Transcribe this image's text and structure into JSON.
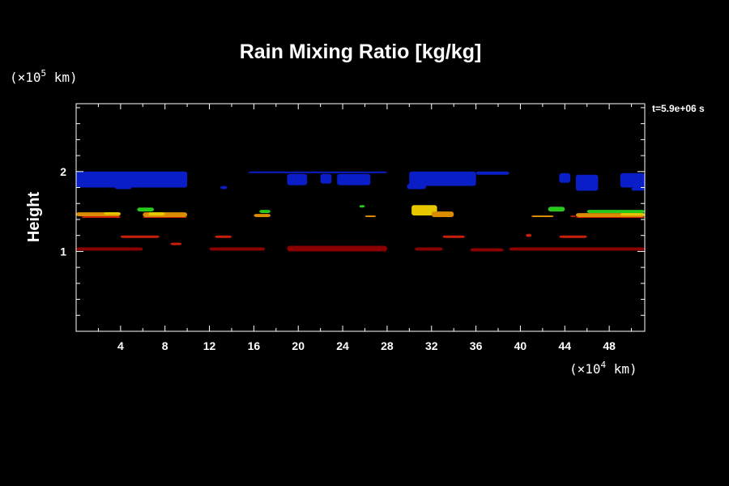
{
  "chart_data": {
    "type": "heatmap",
    "title": "Rain Mixing Ratio [kg/kg]",
    "xlabel": "",
    "ylabel": "Height",
    "time_label": "t=5.9e+06 s",
    "x_unit": {
      "prefix": "(×10",
      "exp": "4",
      "suffix": " km)"
    },
    "y_unit": {
      "prefix": "(×10",
      "exp": "5",
      "suffix": " km)"
    },
    "xlim": [
      0,
      51.2
    ],
    "ylim": [
      0,
      2.85
    ],
    "x_ticks": [
      4,
      8,
      12,
      16,
      20,
      24,
      28,
      32,
      36,
      40,
      44,
      48
    ],
    "y_ticks": [
      1,
      2
    ],
    "grid": false,
    "colors": {
      "background": "#000000",
      "axes": "#ffffff",
      "dark_red": "#8b0000",
      "red": "#c81e0a",
      "orange": "#dc8c00",
      "yellow": "#e6c800",
      "green": "#28c81e",
      "blue": "#0a1ec8"
    },
    "regions": [
      {
        "color": "blue",
        "x": [
          0,
          10
        ],
        "y": [
          1.8,
          2.0
        ]
      },
      {
        "color": "blue",
        "x": [
          8,
          10
        ],
        "y": [
          1.87,
          1.98
        ]
      },
      {
        "color": "blue",
        "x": [
          3.5,
          5
        ],
        "y": [
          1.78,
          1.82
        ]
      },
      {
        "color": "blue",
        "x": [
          13,
          13.6
        ],
        "y": [
          1.78,
          1.82
        ]
      },
      {
        "color": "blue",
        "x": [
          15.5,
          28
        ],
        "y": [
          1.98,
          2.0
        ]
      },
      {
        "color": "blue",
        "x": [
          19,
          20.8
        ],
        "y": [
          1.83,
          1.97
        ]
      },
      {
        "color": "blue",
        "x": [
          22,
          23
        ],
        "y": [
          1.85,
          1.97
        ]
      },
      {
        "color": "blue",
        "x": [
          23.5,
          26.5
        ],
        "y": [
          1.83,
          1.97
        ]
      },
      {
        "color": "blue",
        "x": [
          30,
          36
        ],
        "y": [
          1.82,
          2.0
        ]
      },
      {
        "color": "blue",
        "x": [
          29.8,
          31.5
        ],
        "y": [
          1.78,
          1.85
        ]
      },
      {
        "color": "blue",
        "x": [
          36,
          39
        ],
        "y": [
          1.96,
          2.0
        ]
      },
      {
        "color": "blue",
        "x": [
          43.5,
          44.5
        ],
        "y": [
          1.86,
          1.98
        ]
      },
      {
        "color": "blue",
        "x": [
          45,
          47
        ],
        "y": [
          1.76,
          1.96
        ]
      },
      {
        "color": "blue",
        "x": [
          49,
          51.2
        ],
        "y": [
          1.8,
          1.98
        ]
      },
      {
        "color": "blue",
        "x": [
          50,
          51.2
        ],
        "y": [
          1.76,
          1.8
        ]
      },
      {
        "color": "orange",
        "x": [
          0,
          4
        ],
        "y": [
          1.44,
          1.49
        ]
      },
      {
        "color": "yellow",
        "x": [
          2.5,
          4
        ],
        "y": [
          1.46,
          1.49
        ]
      },
      {
        "color": "red",
        "x": [
          0.5,
          4
        ],
        "y": [
          1.42,
          1.44
        ]
      },
      {
        "color": "green",
        "x": [
          5.5,
          7
        ],
        "y": [
          1.5,
          1.55
        ]
      },
      {
        "color": "orange",
        "x": [
          6,
          10
        ],
        "y": [
          1.43,
          1.49
        ]
      },
      {
        "color": "yellow",
        "x": [
          6.5,
          8
        ],
        "y": [
          1.45,
          1.49
        ]
      },
      {
        "color": "red",
        "x": [
          6,
          10
        ],
        "y": [
          1.42,
          1.43
        ]
      },
      {
        "color": "green",
        "x": [
          16.5,
          17.5
        ],
        "y": [
          1.48,
          1.52
        ]
      },
      {
        "color": "orange",
        "x": [
          16,
          17.5
        ],
        "y": [
          1.43,
          1.47
        ]
      },
      {
        "color": "green",
        "x": [
          25.5,
          26
        ],
        "y": [
          1.55,
          1.58
        ]
      },
      {
        "color": "orange",
        "x": [
          26,
          27
        ],
        "y": [
          1.43,
          1.45
        ]
      },
      {
        "color": "yellow",
        "x": [
          30.2,
          32.5
        ],
        "y": [
          1.45,
          1.58
        ]
      },
      {
        "color": "orange",
        "x": [
          32,
          34
        ],
        "y": [
          1.43,
          1.5
        ]
      },
      {
        "color": "orange",
        "x": [
          41,
          43
        ],
        "y": [
          1.43,
          1.45
        ]
      },
      {
        "color": "green",
        "x": [
          42.5,
          44
        ],
        "y": [
          1.5,
          1.56
        ]
      },
      {
        "color": "red",
        "x": [
          44.5,
          45
        ],
        "y": [
          1.43,
          1.45
        ]
      },
      {
        "color": "green",
        "x": [
          46,
          51.2
        ],
        "y": [
          1.48,
          1.52
        ]
      },
      {
        "color": "orange",
        "x": [
          45,
          51.2
        ],
        "y": [
          1.43,
          1.48
        ]
      },
      {
        "color": "yellow",
        "x": [
          49,
          51.2
        ],
        "y": [
          1.45,
          1.48
        ]
      },
      {
        "color": "red",
        "x": [
          45,
          51.2
        ],
        "y": [
          1.42,
          1.43
        ]
      },
      {
        "color": "red",
        "x": [
          4,
          7.5
        ],
        "y": [
          1.17,
          1.2
        ]
      },
      {
        "color": "red",
        "x": [
          8.5,
          9.5
        ],
        "y": [
          1.08,
          1.11
        ]
      },
      {
        "color": "red",
        "x": [
          12.5,
          14
        ],
        "y": [
          1.17,
          1.2
        ]
      },
      {
        "color": "red",
        "x": [
          33,
          35
        ],
        "y": [
          1.17,
          1.2
        ]
      },
      {
        "color": "red",
        "x": [
          40.5,
          41
        ],
        "y": [
          1.18,
          1.22
        ]
      },
      {
        "color": "red",
        "x": [
          43.5,
          46
        ],
        "y": [
          1.17,
          1.2
        ]
      },
      {
        "color": "dark_red",
        "x": [
          0,
          6
        ],
        "y": [
          1.01,
          1.05
        ]
      },
      {
        "color": "dark_red",
        "x": [
          12,
          17
        ],
        "y": [
          1.01,
          1.05
        ]
      },
      {
        "color": "dark_red",
        "x": [
          19,
          28
        ],
        "y": [
          1.0,
          1.07
        ]
      },
      {
        "color": "dark_red",
        "x": [
          30.5,
          33
        ],
        "y": [
          1.01,
          1.05
        ]
      },
      {
        "color": "dark_red",
        "x": [
          35.5,
          38.5
        ],
        "y": [
          1.0,
          1.04
        ]
      },
      {
        "color": "dark_red",
        "x": [
          39,
          51.2
        ],
        "y": [
          1.01,
          1.05
        ]
      }
    ]
  }
}
